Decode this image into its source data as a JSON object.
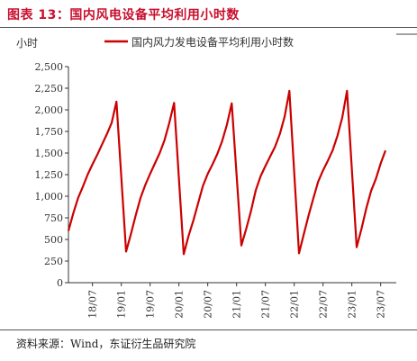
{
  "figure": {
    "title": "图表 13：国内风电设备平均利用小时数",
    "source": "资料来源：Wind，东证衍生品研究院"
  },
  "chart_data": {
    "type": "line",
    "ylabel": "小时",
    "ylim": [
      0,
      2500
    ],
    "yticks": [
      "0",
      "250",
      "500",
      "750",
      "1,000",
      "1,250",
      "1,500",
      "1,750",
      "2,000",
      "2,250",
      "2,500"
    ],
    "xticks": [
      "18/07",
      "19/01",
      "19/07",
      "20/01",
      "20/07",
      "21/01",
      "21/07",
      "22/01",
      "22/07",
      "23/01",
      "23/07"
    ],
    "legend_position": "top-left",
    "series": [
      {
        "name": "国内风力发电设备平均利用小时数",
        "color": "#cc0000",
        "x": [
          "2018-02",
          "2018-03",
          "2018-04",
          "2018-05",
          "2018-06",
          "2018-07",
          "2018-08",
          "2018-09",
          "2018-10",
          "2018-11",
          "2018-12",
          "2019-02",
          "2019-03",
          "2019-04",
          "2019-05",
          "2019-06",
          "2019-07",
          "2019-08",
          "2019-09",
          "2019-10",
          "2019-11",
          "2019-12",
          "2020-02",
          "2020-03",
          "2020-04",
          "2020-05",
          "2020-06",
          "2020-07",
          "2020-08",
          "2020-09",
          "2020-10",
          "2020-11",
          "2020-12",
          "2021-02",
          "2021-03",
          "2021-04",
          "2021-05",
          "2021-06",
          "2021-07",
          "2021-08",
          "2021-09",
          "2021-10",
          "2021-11",
          "2021-12",
          "2022-02",
          "2022-03",
          "2022-04",
          "2022-05",
          "2022-06",
          "2022-07",
          "2022-08",
          "2022-09",
          "2022-10",
          "2022-11",
          "2022-12",
          "2023-02",
          "2023-03",
          "2023-04",
          "2023-05",
          "2023-06",
          "2023-07",
          "2023-08"
        ],
        "values": [
          600,
          800,
          980,
          1110,
          1250,
          1370,
          1480,
          1600,
          1720,
          1850,
          2095,
          360,
          560,
          780,
          980,
          1130,
          1260,
          1380,
          1500,
          1650,
          1850,
          2080,
          330,
          540,
          720,
          920,
          1120,
          1260,
          1370,
          1490,
          1640,
          1830,
          2075,
          430,
          620,
          830,
          1070,
          1230,
          1350,
          1460,
          1570,
          1720,
          1920,
          2220,
          340,
          560,
          780,
          980,
          1170,
          1300,
          1410,
          1530,
          1700,
          1910,
          2220,
          410,
          620,
          860,
          1060,
          1200,
          1380,
          1530
        ]
      }
    ]
  }
}
